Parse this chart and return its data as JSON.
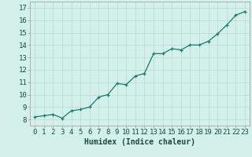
{
  "x": [
    0,
    1,
    2,
    3,
    4,
    5,
    6,
    7,
    8,
    9,
    10,
    11,
    12,
    13,
    14,
    15,
    16,
    17,
    18,
    19,
    20,
    21,
    22,
    23
  ],
  "y": [
    8.2,
    8.3,
    8.4,
    8.1,
    8.7,
    8.8,
    9.0,
    9.8,
    10.0,
    10.9,
    10.8,
    11.5,
    11.7,
    13.3,
    13.3,
    13.7,
    13.6,
    14.0,
    14.0,
    14.3,
    14.9,
    15.6,
    16.4,
    16.7
  ],
  "line_color": "#1a7a6e",
  "marker": "+",
  "marker_size": 3,
  "linewidth": 0.9,
  "bg_color": "#d4f0eb",
  "grid_color": "#b8d8d4",
  "xlabel": "Humidex (Indice chaleur)",
  "ylim": [
    7.5,
    17.5
  ],
  "xlim": [
    -0.5,
    23.5
  ],
  "yticks": [
    8,
    9,
    10,
    11,
    12,
    13,
    14,
    15,
    16,
    17
  ],
  "xticks": [
    0,
    1,
    2,
    3,
    4,
    5,
    6,
    7,
    8,
    9,
    10,
    11,
    12,
    13,
    14,
    15,
    16,
    17,
    18,
    19,
    20,
    21,
    22,
    23
  ],
  "xlabel_fontsize": 7,
  "tick_fontsize": 6.5,
  "tick_color": "#1a4a44",
  "spine_color": "#999999"
}
